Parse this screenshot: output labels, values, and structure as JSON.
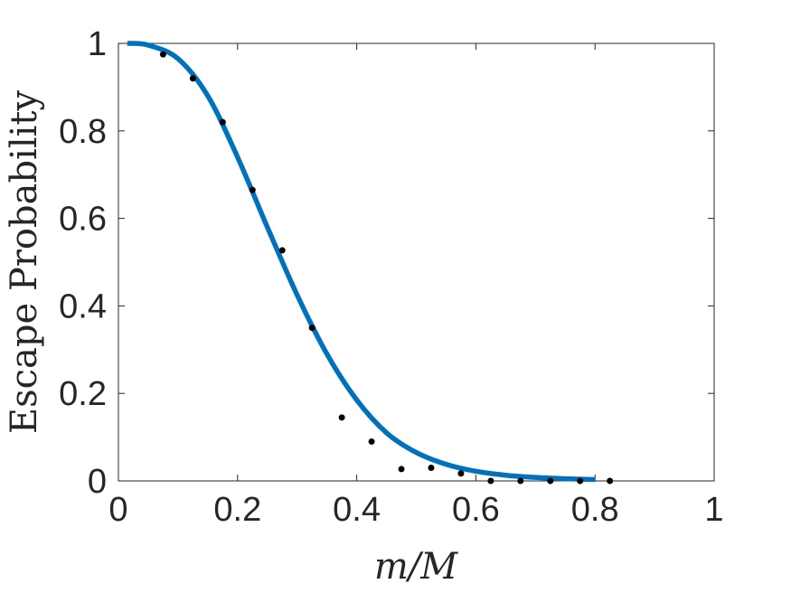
{
  "chart_data": {
    "type": "scatter",
    "title": "",
    "xlabel": "m/M",
    "ylabel": "Escape Probability",
    "xlim": [
      0,
      1
    ],
    "ylim": [
      0,
      1
    ],
    "grid": false,
    "x_ticks": [
      "0",
      "0.2",
      "0.4",
      "0.6",
      "0.8",
      "1"
    ],
    "y_ticks": [
      "0",
      "0.2",
      "0.4",
      "0.6",
      "0.8",
      "1"
    ],
    "colors": {
      "curve": "#0072BD",
      "points": "#000000",
      "axes": "#262626"
    },
    "series": [
      {
        "type": "scatter",
        "x": [
          0.075,
          0.125,
          0.175,
          0.225,
          0.275,
          0.325,
          0.375,
          0.425,
          0.475,
          0.525,
          0.575,
          0.625,
          0.675,
          0.725,
          0.775,
          0.825
        ],
        "y": [
          0.975,
          0.92,
          0.82,
          0.665,
          0.527,
          0.35,
          0.145,
          0.09,
          0.027,
          0.03,
          0.017,
          0.0,
          0.0,
          0.0,
          0.0,
          0.0
        ]
      },
      {
        "type": "line",
        "x": [
          0.015,
          0.05,
          0.1,
          0.15,
          0.2,
          0.25,
          0.3,
          0.35,
          0.4,
          0.45,
          0.5,
          0.55,
          0.6,
          0.65,
          0.7,
          0.75,
          0.8
        ],
        "y": [
          1.0,
          0.996,
          0.965,
          0.88,
          0.74,
          0.58,
          0.425,
          0.29,
          0.185,
          0.11,
          0.065,
          0.038,
          0.022,
          0.013,
          0.008,
          0.005,
          0.003
        ]
      }
    ]
  }
}
